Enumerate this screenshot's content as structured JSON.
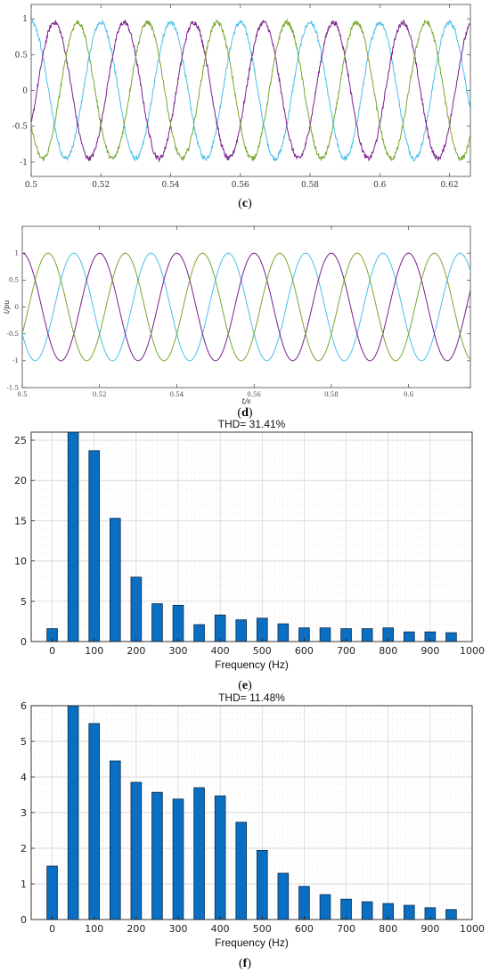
{
  "colors": {
    "phase_a": "#4cbfe8",
    "phase_b": "#7a1f8c",
    "phase_c": "#78a82e",
    "bar": "#0a6fc2",
    "bar_edge": "#0b2a4a"
  },
  "panels": {
    "c": {
      "caption_open": "(",
      "caption_letter": "c",
      "caption_close": ")"
    },
    "d": {
      "caption_open": "(",
      "caption_letter": "d",
      "caption_close": ")"
    },
    "e": {
      "caption_open": "(",
      "caption_letter": "e",
      "caption_close": ")"
    },
    "f": {
      "caption_open": "(",
      "caption_letter": "f",
      "caption_close": ")"
    }
  },
  "chart_data": [
    {
      "id": "c",
      "type": "line",
      "title": "",
      "xlabel": "",
      "ylabel": "",
      "xlim": [
        0.5,
        0.626
      ],
      "ylim": [
        -1.2,
        1.2
      ],
      "xticks": [
        "0.5",
        "0.52",
        "0.54",
        "0.56",
        "0.58",
        "0.6",
        "0.62"
      ],
      "xtick_values": [
        0.5,
        0.52,
        0.54,
        0.56,
        0.58,
        0.6,
        0.62
      ],
      "yticks": [
        "1",
        "0.5",
        "0",
        "-0.5",
        "-1"
      ],
      "ytick_values": [
        1,
        0.5,
        0,
        -0.5,
        -1
      ],
      "frequency_hz": 50,
      "amplitude": 0.95,
      "noisy": true,
      "series": [
        {
          "color_key": "phase_a",
          "phase_deg": 90
        },
        {
          "color_key": "phase_b",
          "phase_deg": -30
        },
        {
          "color_key": "phase_c",
          "phase_deg": 210
        }
      ]
    },
    {
      "id": "d",
      "type": "line",
      "title": "",
      "xlabel": "t/s",
      "ylabel": "i/pu",
      "xlim": [
        0.5,
        0.616
      ],
      "ylim": [
        -1.5,
        1.5
      ],
      "xticks": [
        "0.5",
        "0.52",
        "0.54",
        "0.56",
        "0.58",
        "0.6"
      ],
      "xtick_values": [
        0.5,
        0.52,
        0.54,
        0.56,
        0.58,
        0.6
      ],
      "yticks": [
        "1",
        "0.5",
        "0",
        "-0.5",
        "-1",
        "-1.5"
      ],
      "ytick_values": [
        1,
        0.5,
        0,
        -0.5,
        -1,
        -1.5
      ],
      "frequency_hz": 50,
      "amplitude": 1.0,
      "noisy": false,
      "series": [
        {
          "color_key": "phase_a",
          "phase_deg": 210
        },
        {
          "color_key": "phase_b",
          "phase_deg": 90
        },
        {
          "color_key": "phase_c",
          "phase_deg": -30
        }
      ]
    },
    {
      "id": "e",
      "type": "bar",
      "title": "THD= 31.41%",
      "xlabel": "Frequency (Hz)",
      "ylabel": "",
      "xlim": [
        -50,
        1000
      ],
      "ylim": [
        0,
        26
      ],
      "grid": true,
      "xticks": [
        "0",
        "100",
        "200",
        "300",
        "400",
        "500",
        "600",
        "700",
        "800",
        "900",
        "1000"
      ],
      "xtick_values": [
        0,
        100,
        200,
        300,
        400,
        500,
        600,
        700,
        800,
        900,
        1000
      ],
      "yticks": [
        "0",
        "5",
        "10",
        "15",
        "20",
        "25"
      ],
      "ytick_values": [
        0,
        5,
        10,
        15,
        20,
        25
      ],
      "x": [
        0,
        50,
        100,
        150,
        200,
        250,
        300,
        350,
        400,
        450,
        500,
        550,
        600,
        650,
        700,
        750,
        800,
        850,
        900,
        950
      ],
      "values": [
        1.6,
        26,
        23.7,
        15.3,
        8.0,
        4.7,
        4.5,
        2.1,
        3.3,
        2.7,
        2.9,
        2.2,
        1.7,
        1.7,
        1.6,
        1.6,
        1.7,
        1.2,
        1.2,
        1.1
      ]
    },
    {
      "id": "f",
      "type": "bar",
      "title": "THD= 11.48%",
      "xlabel": "Frequency (Hz)",
      "ylabel": "",
      "xlim": [
        -50,
        1000
      ],
      "ylim": [
        0,
        6
      ],
      "grid": true,
      "xticks": [
        "0",
        "100",
        "200",
        "300",
        "400",
        "500",
        "600",
        "700",
        "800",
        "900",
        "1000"
      ],
      "xtick_values": [
        0,
        100,
        200,
        300,
        400,
        500,
        600,
        700,
        800,
        900,
        1000
      ],
      "yticks": [
        "0",
        "1",
        "2",
        "3",
        "4",
        "5",
        "6"
      ],
      "ytick_values": [
        0,
        1,
        2,
        3,
        4,
        5,
        6
      ],
      "x": [
        0,
        50,
        100,
        150,
        200,
        250,
        300,
        350,
        400,
        450,
        500,
        550,
        600,
        650,
        700,
        750,
        800,
        850,
        900,
        950
      ],
      "values": [
        1.5,
        6.0,
        5.5,
        4.45,
        3.85,
        3.57,
        3.38,
        3.7,
        3.47,
        2.73,
        1.94,
        1.3,
        0.93,
        0.7,
        0.57,
        0.5,
        0.45,
        0.4,
        0.33,
        0.28
      ]
    }
  ]
}
